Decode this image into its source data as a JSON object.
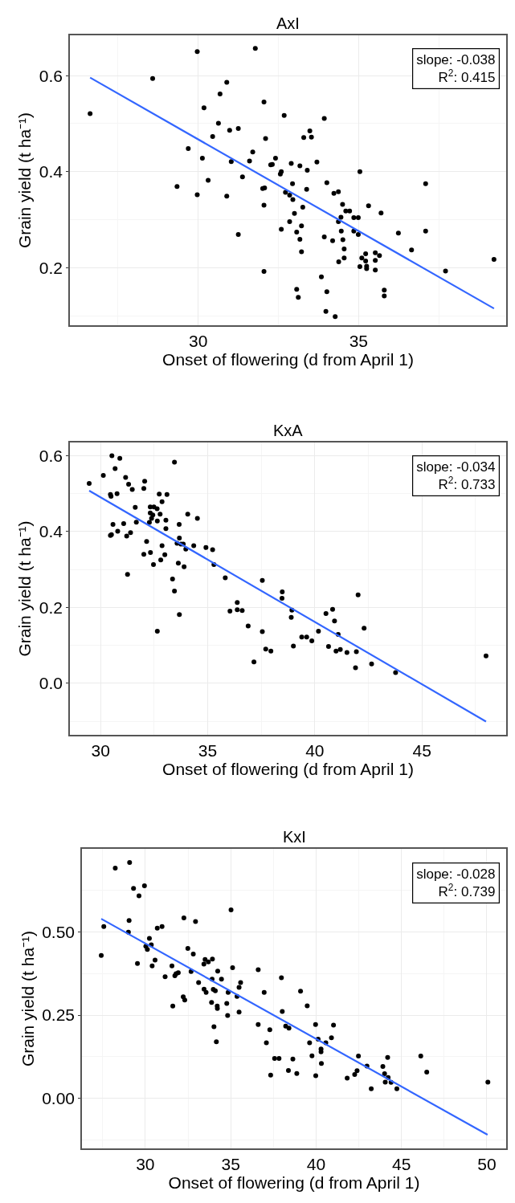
{
  "chart_data": [
    {
      "type": "scatter",
      "title": "AxI",
      "xlabel": "Onset of flowering (d from April 1)",
      "ylabel": "Grain yield (t ha⁻¹)",
      "xlim": [
        26.0,
        39.6
      ],
      "xticks": [
        30,
        35
      ],
      "ylim": [
        0.08,
        0.684
      ],
      "yticks": [
        0.2,
        0.4,
        0.6
      ],
      "grid": true,
      "marker": "circle",
      "annotations": [
        "slope: -0.038",
        "R$^{2}$: 0.415"
      ],
      "series": [
        {
          "color": "#000000",
          "x": [
            26.63,
            28.58,
            29.97,
            30.89,
            30.68,
            30.18,
            32.05,
            31.78,
            30.63,
            30.98,
            31.25,
            30.45,
            32.1,
            29.69,
            30.13,
            31.03,
            31.6,
            31.7,
            32.26,
            31.38,
            30.31,
            29.34,
            29.97,
            30.89,
            32.01,
            32.07,
            32.05,
            31.25,
            32.05,
            32.68,
            33.93,
            33.48,
            33.29,
            33.53,
            32.41,
            32.31,
            32.9,
            33.17,
            33.4,
            33.7,
            32.59,
            32.56,
            35.04,
            37.09,
            32.94,
            33.38,
            34.01,
            34.23,
            34.37,
            32.72,
            32.85,
            32.95,
            33.26,
            34.5,
            34.6,
            34.72,
            35.31,
            35.7,
            33.0,
            34.45,
            34.37,
            34.85,
            34.99,
            32.85,
            32.59,
            33.22,
            33.07,
            34.85,
            34.99,
            34.46,
            33.93,
            34.19,
            34.51,
            36.24,
            37.09,
            36.65,
            33.17,
            34.55,
            33.22,
            34.55,
            34.38,
            35.22,
            35.1,
            35.22,
            35.04,
            35.25,
            35.25,
            35.52,
            35.65,
            35.52,
            35.52,
            37.71,
            39.22,
            33.84,
            33.07,
            33.12,
            34.01,
            33.98,
            34.27,
            35.8,
            35.8
          ],
          "values": [
            0.521,
            0.594,
            0.65,
            0.586,
            0.562,
            0.533,
            0.545,
            0.657,
            0.501,
            0.486,
            0.49,
            0.473,
            0.469,
            0.448,
            0.428,
            0.421,
            0.422,
            0.441,
            0.414,
            0.389,
            0.382,
            0.369,
            0.352,
            0.349,
            0.365,
            0.366,
            0.33,
            0.269,
            0.192,
            0.517,
            0.511,
            0.485,
            0.471,
            0.472,
            0.428,
            0.415,
            0.417,
            0.412,
            0.403,
            0.42,
            0.4,
            0.395,
            0.4,
            0.375,
            0.375,
            0.363,
            0.377,
            0.355,
            0.358,
            0.357,
            0.351,
            0.342,
            0.326,
            0.332,
            0.318,
            0.318,
            0.329,
            0.314,
            0.313,
            0.305,
            0.296,
            0.304,
            0.304,
            0.296,
            0.28,
            0.287,
            0.274,
            0.276,
            0.269,
            0.276,
            0.264,
            0.256,
            0.258,
            0.272,
            0.276,
            0.237,
            0.259,
            0.239,
            0.233,
            0.22,
            0.212,
            0.229,
            0.22,
            0.214,
            0.202,
            0.203,
            0.198,
            0.231,
            0.225,
            0.215,
            0.195,
            0.193,
            0.217,
            0.181,
            0.155,
            0.138,
            0.15,
            0.109,
            0.098,
            0.153,
            0.141
          ]
        },
        {
          "type": "line",
          "marker": "none",
          "color": "#3366ff",
          "x": [
            26.63,
            39.22
          ],
          "values": [
            0.596,
            0.115
          ]
        }
      ]
    },
    {
      "type": "scatter",
      "title": "KxA",
      "xlabel": "Onset of flowering (d from April 1)",
      "ylabel": "Grain yield (t ha⁻¹)",
      "xlim": [
        28.57,
        48.93
      ],
      "xticks": [
        30,
        35,
        40,
        45
      ],
      "ylim": [
        -0.136,
        0.635
      ],
      "yticks": [
        {
          "value": 0,
          "label": "0.0"
        },
        0.2,
        0.4,
        0.6
      ],
      "grid": true,
      "marker": "circle",
      "annotations": [
        "slope: -0.034",
        "R$^{2}$: 0.733"
      ],
      "series": [
        {
          "color": "#000000",
          "x": [
            29.47,
            30.13,
            30.53,
            30.9,
            30.68,
            30.46,
            30.49,
            30.77,
            31.17,
            31.31,
            31.48,
            32.06,
            32.02,
            31.62,
            31.67,
            31.08,
            30.58,
            30.46,
            30.51,
            30.8,
            31.4,
            31.22,
            31.26,
            32.15,
            32.02,
            32.33,
            32.47,
            32.65,
            32.32,
            32.49,
            32.64,
            32.32,
            32.38,
            32.28,
            32.44,
            32.65,
            32.78,
            32.87,
            32.74,
            33.1,
            33.05,
            33.05,
            32.87,
            33.0,
            32.81,
            33.45,
            33.67,
            34.07,
            34.52,
            33.68,
            33.57,
            33.75,
            33.86,
            33.98,
            34.35,
            33.63,
            33.9,
            33.36,
            33.45,
            33.68,
            34.92,
            35.23,
            35.29,
            35.82,
            36.04,
            36.38,
            36.61,
            36.38,
            36.89,
            37.16,
            37.55,
            37.55,
            37.71,
            37.95,
            38.48,
            38.47,
            38.93,
            38.9,
            39.39,
            39.62,
            39.86,
            39.0,
            40.17,
            40.64,
            40.52,
            40.83,
            40.92,
            41.09,
            40.99,
            41.19,
            41.5,
            41.94,
            41.9,
            42.02,
            42.3,
            42.65,
            43.77,
            47.99
          ],
          "values": [
            0.527,
            0.548,
            0.6,
            0.593,
            0.566,
            0.498,
            0.493,
            0.5,
            0.543,
            0.525,
            0.511,
            0.533,
            0.514,
            0.464,
            0.425,
            0.421,
            0.419,
            0.39,
            0.392,
            0.401,
            0.397,
            0.388,
            0.287,
            0.374,
            0.34,
            0.345,
            0.313,
            0.137,
            0.465,
            0.465,
            0.46,
            0.449,
            0.435,
            0.424,
            0.444,
            0.428,
            0.446,
            0.479,
            0.499,
            0.498,
            0.43,
            0.408,
            0.363,
            0.339,
            0.325,
            0.583,
            0.419,
            0.446,
            0.435,
            0.383,
            0.369,
            0.367,
            0.367,
            0.354,
            0.363,
            0.317,
            0.307,
            0.275,
            0.243,
            0.181,
            0.358,
            0.352,
            0.313,
            0.278,
            0.19,
            0.194,
            0.192,
            0.213,
            0.151,
            0.056,
            0.271,
            0.136,
            0.09,
            0.085,
            0.241,
            0.224,
            0.193,
            0.174,
            0.122,
            0.122,
            0.112,
            0.098,
            0.137,
            0.097,
            0.184,
            0.195,
            0.164,
            0.129,
            0.085,
            0.089,
            0.081,
            0.083,
            0.041,
            0.233,
            0.145,
            0.051,
            0.028,
            0.072
          ]
        },
        {
          "type": "line",
          "marker": "none",
          "color": "#3366ff",
          "x": [
            29.47,
            47.99
          ],
          "values": [
            0.508,
            -0.101
          ]
        }
      ]
    },
    {
      "type": "scatter",
      "title": "KxI",
      "xlabel": "Onset of flowering (d from April 1)",
      "ylabel": "Grain yield (t ha⁻¹)",
      "xlim": [
        26.29,
        51.13
      ],
      "xticks": [
        30,
        35,
        40,
        45,
        50
      ],
      "ylim": [
        -0.15,
        0.749
      ],
      "yticks": [
        {
          "value": 0,
          "label": "0.00"
        },
        {
          "value": 0.25,
          "label": "0.25"
        },
        {
          "value": 0.5,
          "label": "0.50"
        }
      ],
      "grid": true,
      "marker": "circle",
      "annotations": [
        "slope: -0.028",
        "R$^{2}$: 0.739"
      ],
      "series": [
        {
          "color": "#000000",
          "x": [
            27.42,
            27.57,
            28.24,
            29.08,
            29.31,
            29.63,
            29.95,
            29.05,
            29.01,
            29.54,
            30.03,
            30.12,
            30.24,
            30.35,
            30.4,
            30.57,
            30.7,
            30.98,
            31.56,
            31.16,
            31.73,
            31.8,
            31.93,
            31.61,
            32.22,
            32.31,
            32.26,
            32.94,
            32.49,
            32.81,
            32.68,
            33.12,
            33.43,
            33.5,
            33.69,
            33.93,
            33.44,
            33.56,
            33.91,
            34.24,
            33.98,
            34.1,
            33.88,
            34.46,
            34.21,
            34.22,
            34.02,
            34.16,
            34.77,
            34.82,
            35.02,
            34.85,
            35.11,
            35.37,
            35.49,
            35.58,
            35.49,
            36.61,
            36.61,
            36.96,
            37.09,
            37.97,
            39.09,
            39.48,
            38.02,
            37.29,
            38.22,
            38.41,
            39.97,
            41.02,
            40.9,
            40.12,
            40.57,
            39.62,
            39.76,
            40.29,
            40.29,
            40.31,
            37.57,
            37.83,
            38.64,
            37.34,
            38.38,
            38.87,
            39.98,
            42.48,
            42.98,
            42.4,
            42.26,
            41.82,
            43.23,
            43.91,
            44.19,
            44.01,
            44.22,
            44.05,
            44.39,
            44.73,
            46.13,
            46.48,
            50.06
          ],
          "values": [
            0.429,
            0.516,
            0.691,
            0.708,
            0.63,
            0.608,
            0.638,
            0.534,
            0.499,
            0.405,
            0.457,
            0.447,
            0.48,
            0.461,
            0.398,
            0.415,
            0.511,
            0.516,
            0.398,
            0.365,
            0.368,
            0.374,
            0.377,
            0.277,
            0.305,
            0.295,
            0.542,
            0.531,
            0.45,
            0.433,
            0.381,
            0.348,
            0.403,
            0.417,
            0.41,
            0.418,
            0.328,
            0.318,
            0.358,
            0.382,
            0.327,
            0.323,
            0.288,
            0.358,
            0.277,
            0.27,
            0.215,
            0.17,
            0.285,
            0.249,
            0.566,
            0.318,
            0.392,
            0.306,
            0.333,
            0.348,
            0.259,
            0.386,
            0.222,
            0.318,
            0.167,
            0.362,
            0.322,
            0.278,
            0.261,
            0.206,
            0.217,
            0.211,
            0.222,
            0.22,
            0.182,
            0.178,
            0.167,
            0.167,
            0.128,
            0.148,
            0.14,
            0.105,
            0.12,
            0.12,
            0.118,
            0.07,
            0.084,
            0.075,
            0.068,
            0.127,
            0.097,
            0.083,
            0.072,
            0.061,
            0.029,
            0.096,
            0.123,
            0.074,
            0.063,
            0.049,
            0.048,
            0.029,
            0.127,
            0.079,
            0.049
          ]
        },
        {
          "type": "line",
          "marker": "none",
          "color": "#3366ff",
          "x": [
            27.42,
            50.04
          ],
          "values": [
            0.539,
            -0.109
          ]
        }
      ]
    }
  ]
}
